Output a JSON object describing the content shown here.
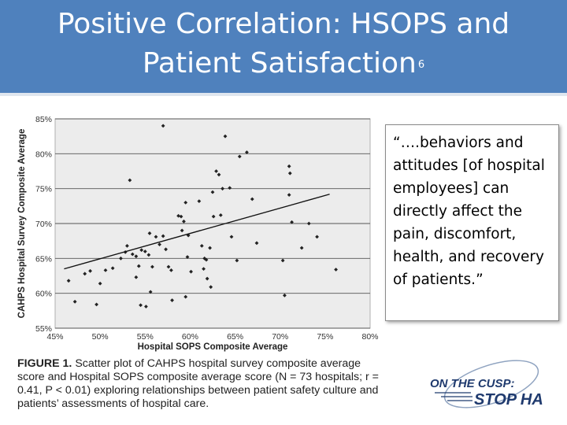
{
  "slide": {
    "title_line1": "Positive Correlation: HSOPS and",
    "title_line2": "Patient Satisfaction",
    "title_ref": "6",
    "quote": "“….behaviors and attitudes [of hospital employees] can directly affect the pain, discomfort, health, and recovery of patients.”",
    "caption_label": "FIGURE 1.",
    "caption_text": "Scatter plot of CAHPS hospital survey composite average score and Hospital SOPS composite average score (N = 73 hospitals; r = 0.41, P < 0.01) exploring relationships between patient safety culture and patients’ assessments of hospital care.",
    "logo_line1": "ON THE CUSP:",
    "logo_line2": "STOP HAI",
    "colors": {
      "header": "#4f81bd",
      "logo": "#1f3a6e"
    }
  },
  "chart_data": {
    "type": "scatter",
    "xlabel": "Hospital SOPS Composite Average",
    "ylabel": "CAHPS Hospital Survey Composite Average",
    "xlim": [
      45,
      80
    ],
    "ylim": [
      55,
      85
    ],
    "x_ticks": [
      "45%",
      "50%",
      "55%",
      "60%",
      "65%",
      "70%",
      "75%",
      "80%"
    ],
    "y_ticks": [
      "55%",
      "60%",
      "65%",
      "70%",
      "75%",
      "80%",
      "85%"
    ],
    "grid": true,
    "trendline": {
      "x": [
        46,
        75.5
      ],
      "y": [
        63.5,
        74.2
      ]
    },
    "points": [
      [
        46.5,
        61.8
      ],
      [
        47.2,
        58.8
      ],
      [
        48.3,
        62.8
      ],
      [
        48.9,
        63.2
      ],
      [
        50.0,
        61.4
      ],
      [
        49.6,
        58.4
      ],
      [
        50.6,
        63.3
      ],
      [
        51.4,
        63.6
      ],
      [
        52.3,
        65.0
      ],
      [
        52.8,
        65.9
      ],
      [
        53.0,
        66.8
      ],
      [
        53.6,
        65.6
      ],
      [
        54.0,
        65.3
      ],
      [
        54.6,
        66.2
      ],
      [
        55.0,
        66.0
      ],
      [
        55.4,
        65.5
      ],
      [
        55.8,
        63.8
      ],
      [
        54.3,
        63.9
      ],
      [
        54.0,
        62.3
      ],
      [
        54.5,
        58.3
      ],
      [
        55.1,
        58.1
      ],
      [
        55.6,
        60.2
      ],
      [
        53.3,
        76.2
      ],
      [
        55.5,
        68.6
      ],
      [
        56.2,
        68.1
      ],
      [
        56.6,
        67.0
      ],
      [
        57.0,
        68.2
      ],
      [
        57.3,
        66.3
      ],
      [
        57.6,
        63.8
      ],
      [
        57.9,
        63.3
      ],
      [
        58.0,
        59.0
      ],
      [
        57.0,
        84.0
      ],
      [
        58.7,
        71.1
      ],
      [
        59.0,
        71.0
      ],
      [
        59.3,
        70.3
      ],
      [
        59.8,
        68.3
      ],
      [
        59.1,
        69.0
      ],
      [
        59.5,
        73.0
      ],
      [
        59.7,
        65.2
      ],
      [
        60.1,
        63.1
      ],
      [
        59.5,
        59.5
      ],
      [
        61.0,
        73.2
      ],
      [
        61.3,
        66.8
      ],
      [
        61.6,
        65.0
      ],
      [
        61.8,
        64.8
      ],
      [
        61.5,
        63.5
      ],
      [
        61.9,
        62.1
      ],
      [
        62.3,
        60.9
      ],
      [
        62.5,
        74.5
      ],
      [
        62.9,
        77.5
      ],
      [
        63.2,
        77.0
      ],
      [
        63.6,
        75.0
      ],
      [
        63.4,
        71.2
      ],
      [
        62.6,
        71.0
      ],
      [
        62.2,
        66.5
      ],
      [
        64.4,
        75.1
      ],
      [
        63.9,
        82.5
      ],
      [
        64.6,
        68.1
      ],
      [
        65.2,
        64.7
      ],
      [
        65.5,
        79.6
      ],
      [
        66.3,
        80.2
      ],
      [
        66.9,
        73.5
      ],
      [
        67.4,
        67.2
      ],
      [
        71.0,
        78.2
      ],
      [
        71.1,
        77.2
      ],
      [
        71.0,
        74.1
      ],
      [
        71.3,
        70.2
      ],
      [
        70.3,
        64.7
      ],
      [
        70.5,
        59.7
      ],
      [
        72.4,
        66.5
      ],
      [
        73.2,
        70.0
      ],
      [
        74.1,
        68.1
      ],
      [
        76.2,
        63.4
      ]
    ]
  }
}
